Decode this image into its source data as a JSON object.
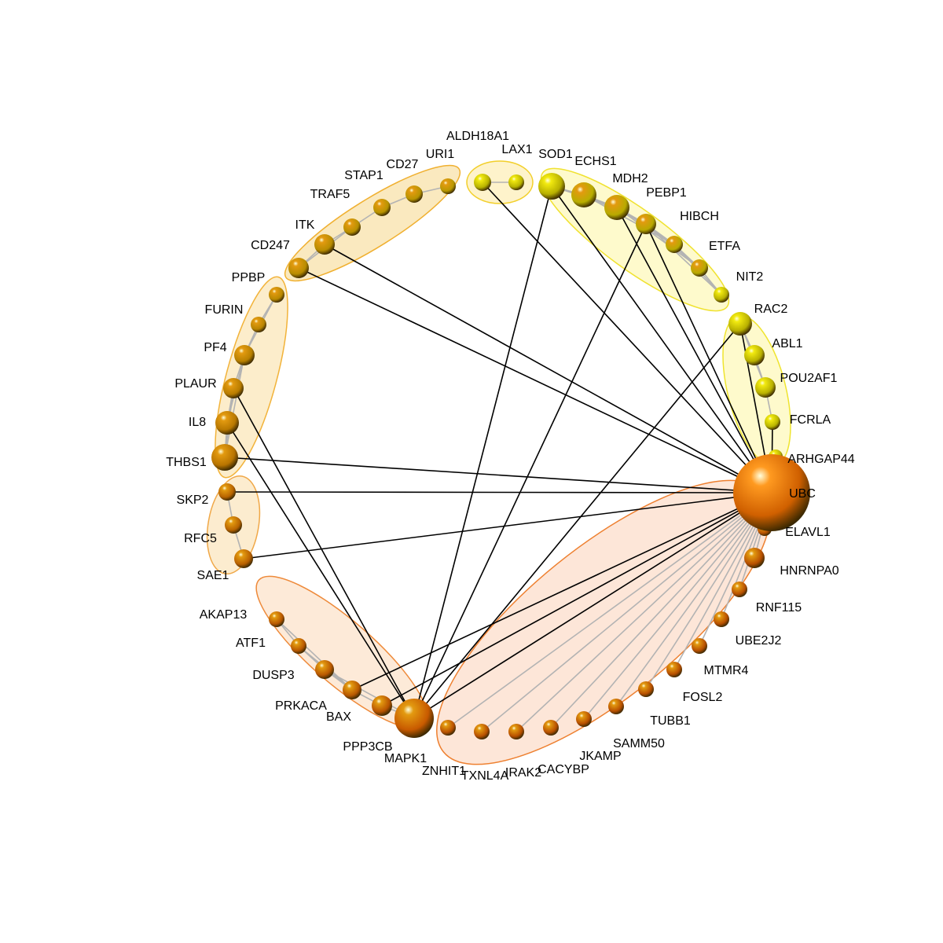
{
  "colors": {
    "background": "#ffffff",
    "grey_edge": "#b3b3b3",
    "black_edge": "#000000",
    "label": "#000000",
    "groups": {
      "g1": {
        "fill": "#f5d78a",
        "stroke": "#f0b030"
      },
      "g2": {
        "fill": "#fde9a0",
        "stroke": "#f2cf2a"
      },
      "g3": {
        "fill": "#fdf6a3",
        "stroke": "#f0e230"
      },
      "g4": {
        "fill": "#fdf6a3",
        "stroke": "#efe42f"
      },
      "g5": {
        "fill": "#f9dfa0",
        "stroke": "#f2b33a"
      },
      "g6": {
        "fill": "#f9dca8",
        "stroke": "#f0a848"
      },
      "g7": {
        "fill": "#fbd8b8",
        "stroke": "#ee8a3a"
      },
      "g8": {
        "fill": "#fbd2b8",
        "stroke": "#ee8030"
      }
    }
  },
  "groups": [
    {
      "id": "g1",
      "name": "cluster-cd247-uri1",
      "members": [
        "CD247",
        "ITK",
        "TRAF5",
        "STAP1",
        "CD27",
        "URI1"
      ]
    },
    {
      "id": "g2",
      "name": "cluster-aldh18a1-lax1",
      "members": [
        "ALDH18A1",
        "LAX1"
      ]
    },
    {
      "id": "g3",
      "name": "cluster-sod1-nit2",
      "members": [
        "SOD1",
        "ECHS1",
        "MDH2",
        "PEBP1",
        "HIBCH",
        "ETFA",
        "NIT2"
      ]
    },
    {
      "id": "g4",
      "name": "cluster-rac2-arhgap44",
      "members": [
        "RAC2",
        "ABL1",
        "POU2AF1",
        "FCRLA",
        "ARHGAP44"
      ]
    },
    {
      "id": "g5",
      "name": "cluster-ppbp-thbs1",
      "members": [
        "PPBP",
        "FURIN",
        "PF4",
        "PLAUR",
        "IL8",
        "THBS1"
      ]
    },
    {
      "id": "g6",
      "name": "cluster-skp2-sae1",
      "members": [
        "SKP2",
        "RFC5",
        "SAE1"
      ]
    },
    {
      "id": "g7",
      "name": "cluster-akap13-mapk1",
      "members": [
        "AKAP13",
        "ATF1",
        "DUSP3",
        "PRKACA",
        "BAX",
        "MAPK1"
      ]
    },
    {
      "id": "g8",
      "name": "cluster-ubc-znhit1",
      "members": [
        "UBC",
        "ELAVL1",
        "HNRNPA0",
        "RNF115",
        "UBE2J2",
        "MTMR4",
        "FOSL2",
        "TUBB1",
        "SAMM50",
        "JKAMP",
        "CACYBP",
        "IRAK2",
        "TXNL4A",
        "ZNHIT1"
      ]
    }
  ],
  "nodes": [
    {
      "id": "ALDH18A1",
      "label": "ALDH18A1",
      "color": "#b8b200",
      "size": "small"
    },
    {
      "id": "LAX1",
      "label": "LAX1",
      "color": "#b8b200",
      "size": "small"
    },
    {
      "id": "SOD1",
      "label": "SOD1",
      "color": "#b8b000",
      "size": "large"
    },
    {
      "id": "ECHS1",
      "label": "ECHS1",
      "color": "#b8ae00",
      "size": "large"
    },
    {
      "id": "MDH2",
      "label": "MDH2",
      "color": "#b8aa00",
      "size": "large"
    },
    {
      "id": "PEBP1",
      "label": "PEBP1",
      "color": "#b8a800",
      "size": "medium"
    },
    {
      "id": "HIBCH",
      "label": "HIBCH",
      "color": "#b8aa00",
      "size": "small"
    },
    {
      "id": "ETFA",
      "label": "ETFA",
      "color": "#b8aa00",
      "size": "small"
    },
    {
      "id": "NIT2",
      "label": "NIT2",
      "color": "#b8b000",
      "size": "small"
    },
    {
      "id": "RAC2",
      "label": "RAC2",
      "color": "#b8b000",
      "size": "medium"
    },
    {
      "id": "ABL1",
      "label": "ABL1",
      "color": "#b8b000",
      "size": "medium"
    },
    {
      "id": "POU2AF1",
      "label": "POU2AF1",
      "color": "#b8b000",
      "size": "medium"
    },
    {
      "id": "FCRLA",
      "label": "FCRLA",
      "color": "#b8b400",
      "size": "small"
    },
    {
      "id": "ARHGAP44",
      "label": "ARHGAP44",
      "color": "#b8b000",
      "size": "small"
    },
    {
      "id": "UBC",
      "label": "UBC",
      "color": "#d06000",
      "size": "hub"
    },
    {
      "id": "ELAVL1",
      "label": "ELAVL1",
      "color": "#b85200",
      "size": "small"
    },
    {
      "id": "HNRNPA0",
      "label": "HNRNPA0",
      "color": "#b85000",
      "size": "medium"
    },
    {
      "id": "RNF115",
      "label": "RNF115",
      "color": "#b85000",
      "size": "small"
    },
    {
      "id": "UBE2J2",
      "label": "UBE2J2",
      "color": "#b85000",
      "size": "small"
    },
    {
      "id": "MTMR4",
      "label": "MTMR4",
      "color": "#b85000",
      "size": "small"
    },
    {
      "id": "FOSL2",
      "label": "FOSL2",
      "color": "#b85000",
      "size": "small"
    },
    {
      "id": "TUBB1",
      "label": "TUBB1",
      "color": "#b85000",
      "size": "small"
    },
    {
      "id": "SAMM50",
      "label": "SAMM50",
      "color": "#b85000",
      "size": "small"
    },
    {
      "id": "JKAMP",
      "label": "JKAMP",
      "color": "#b85000",
      "size": "small"
    },
    {
      "id": "CACYBP",
      "label": "CACYBP",
      "color": "#b85000",
      "size": "small"
    },
    {
      "id": "IRAK2",
      "label": "IRAK2",
      "color": "#b85000",
      "size": "small"
    },
    {
      "id": "TXNL4A",
      "label": "TXNL4A",
      "color": "#b85000",
      "size": "small"
    },
    {
      "id": "ZNHIT1",
      "label": "ZNHIT1",
      "color": "#b85000",
      "size": "small"
    },
    {
      "id": "MAPK1",
      "label": "MAPK1",
      "color": "#c85a00",
      "size": "hub2"
    },
    {
      "id": "PPP3CB",
      "label": "PPP3CB",
      "color": "#b85400",
      "size": "medium"
    },
    {
      "id": "BAX",
      "label": "BAX",
      "color": "#b85400",
      "size": "medium"
    },
    {
      "id": "PRKACA",
      "label": "PRKACA",
      "color": "#b85800",
      "size": "medium"
    },
    {
      "id": "DUSP3",
      "label": "DUSP3",
      "color": "#b85800",
      "size": "small"
    },
    {
      "id": "ATF1",
      "label": "ATF1",
      "color": "#b85800",
      "size": "small"
    },
    {
      "id": "AKAP13",
      "label": "AKAP13",
      "color": "#b85800",
      "size": "small"
    },
    {
      "id": "SAE1",
      "label": "SAE1",
      "color": "#b86000",
      "size": "medium"
    },
    {
      "id": "RFC5",
      "label": "RFC5",
      "color": "#b86400",
      "size": "small"
    },
    {
      "id": "SKP2",
      "label": "SKP2",
      "color": "#b86400",
      "size": "medium"
    },
    {
      "id": "THBS1",
      "label": "THBS1",
      "color": "#b87400",
      "size": "large"
    },
    {
      "id": "IL8",
      "label": "IL8",
      "color": "#b87800",
      "size": "large"
    },
    {
      "id": "PLAUR",
      "label": "PLAUR",
      "color": "#b87c00",
      "size": "medium"
    },
    {
      "id": "PF4",
      "label": "PF4",
      "color": "#b88000",
      "size": "medium"
    },
    {
      "id": "FURIN",
      "label": "FURIN",
      "color": "#b88400",
      "size": "small"
    },
    {
      "id": "PPBP",
      "label": "PPBP",
      "color": "#b88800",
      "size": "small"
    },
    {
      "id": "CD247",
      "label": "CD247",
      "color": "#b88c00",
      "size": "medium"
    },
    {
      "id": "ITK",
      "label": "ITK",
      "color": "#b88c00",
      "size": "medium"
    },
    {
      "id": "TRAF5",
      "label": "TRAF5",
      "color": "#b89000",
      "size": "small"
    },
    {
      "id": "STAP1",
      "label": "STAP1",
      "color": "#b89400",
      "size": "small"
    },
    {
      "id": "CD27",
      "label": "CD27",
      "color": "#b89400",
      "size": "small"
    },
    {
      "id": "URI1",
      "label": "URI1",
      "color": "#b89800",
      "size": "small"
    }
  ],
  "grey_edges": [
    [
      "ALDH18A1",
      "LAX1"
    ],
    [
      "SOD1",
      "ECHS1"
    ],
    [
      "ECHS1",
      "MDH2"
    ],
    [
      "MDH2",
      "PEBP1"
    ],
    [
      "PEBP1",
      "HIBCH"
    ],
    [
      "HIBCH",
      "ETFA"
    ],
    [
      "ETFA",
      "NIT2"
    ],
    [
      "SOD1",
      "MDH2"
    ],
    [
      "ECHS1",
      "PEBP1"
    ],
    [
      "MDH2",
      "HIBCH"
    ],
    [
      "PEBP1",
      "ETFA"
    ],
    [
      "HIBCH",
      "NIT2"
    ],
    [
      "MDH2",
      "ETFA"
    ],
    [
      "PEBP1",
      "NIT2"
    ],
    [
      "ECHS1",
      "HIBCH"
    ],
    [
      "RAC2",
      "ABL1"
    ],
    [
      "ABL1",
      "POU2AF1"
    ],
    [
      "POU2AF1",
      "FCRLA"
    ],
    [
      "RAC2",
      "POU2AF1"
    ],
    [
      "CD247",
      "ITK"
    ],
    [
      "ITK",
      "TRAF5"
    ],
    [
      "TRAF5",
      "STAP1"
    ],
    [
      "STAP1",
      "CD27"
    ],
    [
      "CD27",
      "URI1"
    ],
    [
      "CD247",
      "TRAF5"
    ],
    [
      "PPBP",
      "FURIN"
    ],
    [
      "FURIN",
      "PF4"
    ],
    [
      "PF4",
      "PLAUR"
    ],
    [
      "PLAUR",
      "IL8"
    ],
    [
      "IL8",
      "THBS1"
    ],
    [
      "PF4",
      "IL8"
    ],
    [
      "PLAUR",
      "THBS1"
    ],
    [
      "PF4",
      "THBS1"
    ],
    [
      "PPBP",
      "PF4"
    ],
    [
      "SKP2",
      "RFC5"
    ],
    [
      "RFC5",
      "SAE1"
    ],
    [
      "AKAP13",
      "ATF1"
    ],
    [
      "ATF1",
      "DUSP3"
    ],
    [
      "DUSP3",
      "PRKACA"
    ],
    [
      "PRKACA",
      "BAX"
    ],
    [
      "BAX",
      "MAPK1"
    ],
    [
      "PPP3CB",
      "MAPK1"
    ],
    [
      "AKAP13",
      "PRKACA"
    ],
    [
      "DUSP3",
      "MAPK1"
    ],
    [
      "ATF1",
      "PRKACA"
    ],
    [
      "UBC",
      "ELAVL1"
    ],
    [
      "UBC",
      "HNRNPA0"
    ],
    [
      "UBC",
      "RNF115"
    ],
    [
      "UBC",
      "UBE2J2"
    ],
    [
      "UBC",
      "MTMR4"
    ],
    [
      "UBC",
      "FOSL2"
    ],
    [
      "UBC",
      "TUBB1"
    ],
    [
      "UBC",
      "SAMM50"
    ],
    [
      "UBC",
      "JKAMP"
    ],
    [
      "UBC",
      "CACYBP"
    ],
    [
      "UBC",
      "IRAK2"
    ],
    [
      "UBC",
      "TXNL4A"
    ],
    [
      "UBC",
      "ZNHIT1"
    ],
    [
      "UBC",
      "ARHGAP44"
    ]
  ],
  "black_edges": [
    [
      "UBC",
      "ALDH18A1"
    ],
    [
      "UBC",
      "SOD1"
    ],
    [
      "UBC",
      "MDH2"
    ],
    [
      "UBC",
      "PEBP1"
    ],
    [
      "UBC",
      "RAC2"
    ],
    [
      "UBC",
      "FCRLA"
    ],
    [
      "UBC",
      "ITK"
    ],
    [
      "UBC",
      "CD247"
    ],
    [
      "UBC",
      "SKP2"
    ],
    [
      "UBC",
      "SAE1"
    ],
    [
      "UBC",
      "THBS1"
    ],
    [
      "UBC",
      "PRKACA"
    ],
    [
      "UBC",
      "BAX"
    ],
    [
      "UBC",
      "MAPK1"
    ],
    [
      "MAPK1",
      "IL8"
    ],
    [
      "MAPK1",
      "PLAUR"
    ],
    [
      "MAPK1",
      "SOD1"
    ],
    [
      "MAPK1",
      "PEBP1"
    ],
    [
      "MAPK1",
      "RAC2"
    ]
  ]
}
